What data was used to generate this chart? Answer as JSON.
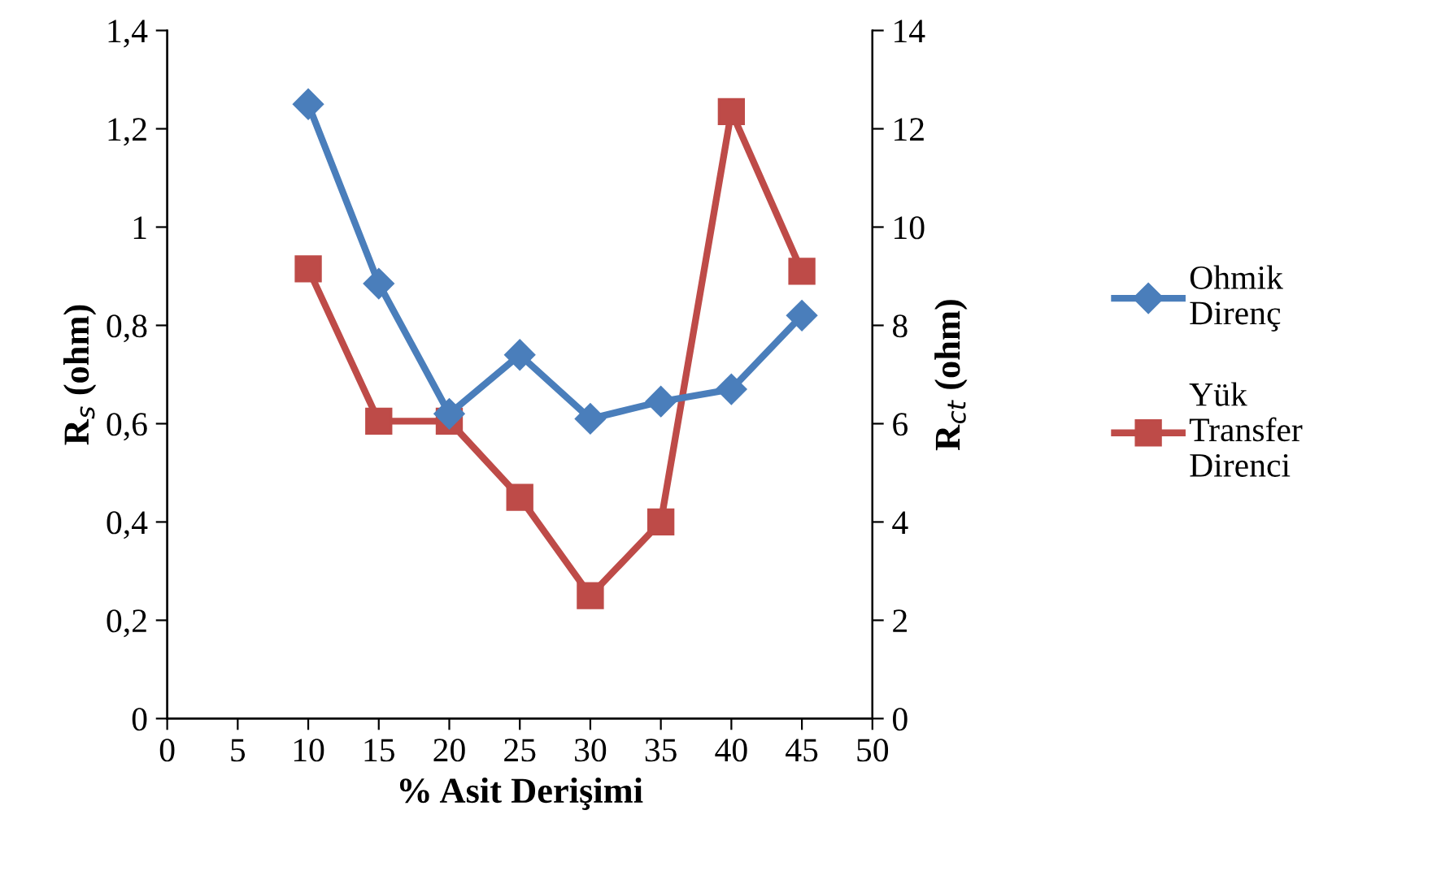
{
  "chart_data": {
    "type": "line",
    "xlabel": "% Asit Derişimi",
    "ylabel": "R$_{s}$ (ohm)",
    "y2label": "R$_{ct}$ (ohm)",
    "x": [
      10,
      15,
      20,
      25,
      30,
      35,
      40,
      45
    ],
    "series": [
      {
        "name": "Ohmik Direnç",
        "color": "#4a7ebb",
        "marker": "diamond",
        "values": [
          1.25,
          0.885,
          0.62,
          0.74,
          0.61,
          0.645,
          0.67,
          0.82
        ]
      },
      {
        "name": "Yük Transfer Direnci",
        "color": "#be4b48",
        "marker": "square",
        "axis": "y2",
        "values": [
          9.15,
          6.05,
          6.05,
          4.5,
          2.5,
          4.0,
          12.35,
          9.1
        ]
      }
    ],
    "xlim": [
      0,
      50
    ],
    "xticks": [
      0,
      5,
      10,
      15,
      20,
      25,
      30,
      35,
      40,
      45,
      50
    ],
    "ylim": [
      0,
      1.4
    ],
    "yticks": [
      0,
      {
        "value": 0.2,
        "label": "0,2"
      },
      {
        "value": 0.4,
        "label": "0,4"
      },
      {
        "value": 0.6,
        "label": "0,6"
      },
      {
        "value": 0.8,
        "label": "0,8"
      },
      1,
      {
        "value": 1.2,
        "label": "1,2"
      },
      {
        "value": 1.4,
        "label": "1,4"
      }
    ],
    "y2lim": [
      0,
      14
    ],
    "y2ticks": [
      0,
      2,
      4,
      6,
      8,
      10,
      12,
      14
    ],
    "grid": false,
    "legend": "right",
    "line_style": "solid"
  }
}
